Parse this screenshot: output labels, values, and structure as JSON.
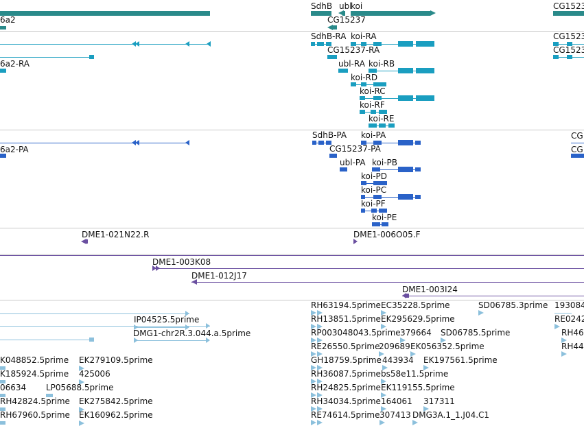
{
  "tracks": {
    "genes": {
      "labels": [
        "6a2",
        "SdhB",
        "ubl",
        "koi",
        "CG15237",
        "CG1523"
      ]
    },
    "transcripts": {
      "labels": [
        "6a2-RA",
        "SdhB-RA",
        "koi-RA",
        "CG15237-RA",
        "ubl-RA",
        "koi-RB",
        "koi-RD",
        "koi-RC",
        "koi-RF",
        "koi-RE",
        "CG1523",
        "CG1523"
      ]
    },
    "proteins": {
      "labels": [
        "6a2-PA",
        "SdhB-PA",
        "koi-PA",
        "CG15237-PA",
        "ubl-PA",
        "koi-PB",
        "koi-PD",
        "koi-PC",
        "koi-PF",
        "koi-PE",
        "CG",
        "CG"
      ]
    },
    "clone_ends": {
      "labels": [
        "DME1-021N22.R",
        "DME1-006O05.F"
      ]
    },
    "clones": {
      "labels": [
        "DME1-003K08",
        "DME1-012J17",
        "DME1-003I24"
      ]
    },
    "ests": {
      "labels": [
        "IP04525.5prime",
        "DMG1-chr2R.3.044.a.5prime",
        "K048852.5prime",
        "EK279109.5prime",
        "K185924.5prime",
        "425006",
        "06634",
        "LP05688.5prime",
        "RH42824.5prime",
        "EK275842.5prime",
        "RH67960.5prime",
        "EK160962.5prime",
        "RH63194.5prime",
        "EC35228.5prime",
        "SD06785.3prime",
        "193084",
        "RH13851.5prime",
        "EK295629.5prime",
        "RE0242",
        "RP003048043.5prime",
        "379664",
        "SD06785.5prime",
        "RH46",
        "RE26550.5prime",
        "209689",
        "EK056352.5prime",
        "RH44",
        "GH18759.5prime",
        "443934",
        "EK197561.5prime",
        "RH36087.5prime",
        "bs58e11.5prime",
        "RH24825.5prime",
        "EK119155.5prime",
        "RH34034.5prime",
        "164061",
        "317311",
        "RE74614.5prime",
        "307413",
        "DMG3A.1_1.J04.C1"
      ]
    }
  },
  "colors": {
    "gene": "#2a8a8a",
    "transcript": "#1a9ec0",
    "protein": "#2a62c8",
    "clone": "#6a4fa0",
    "est": "#8cc0dc",
    "divider": "#c8c8c8"
  }
}
